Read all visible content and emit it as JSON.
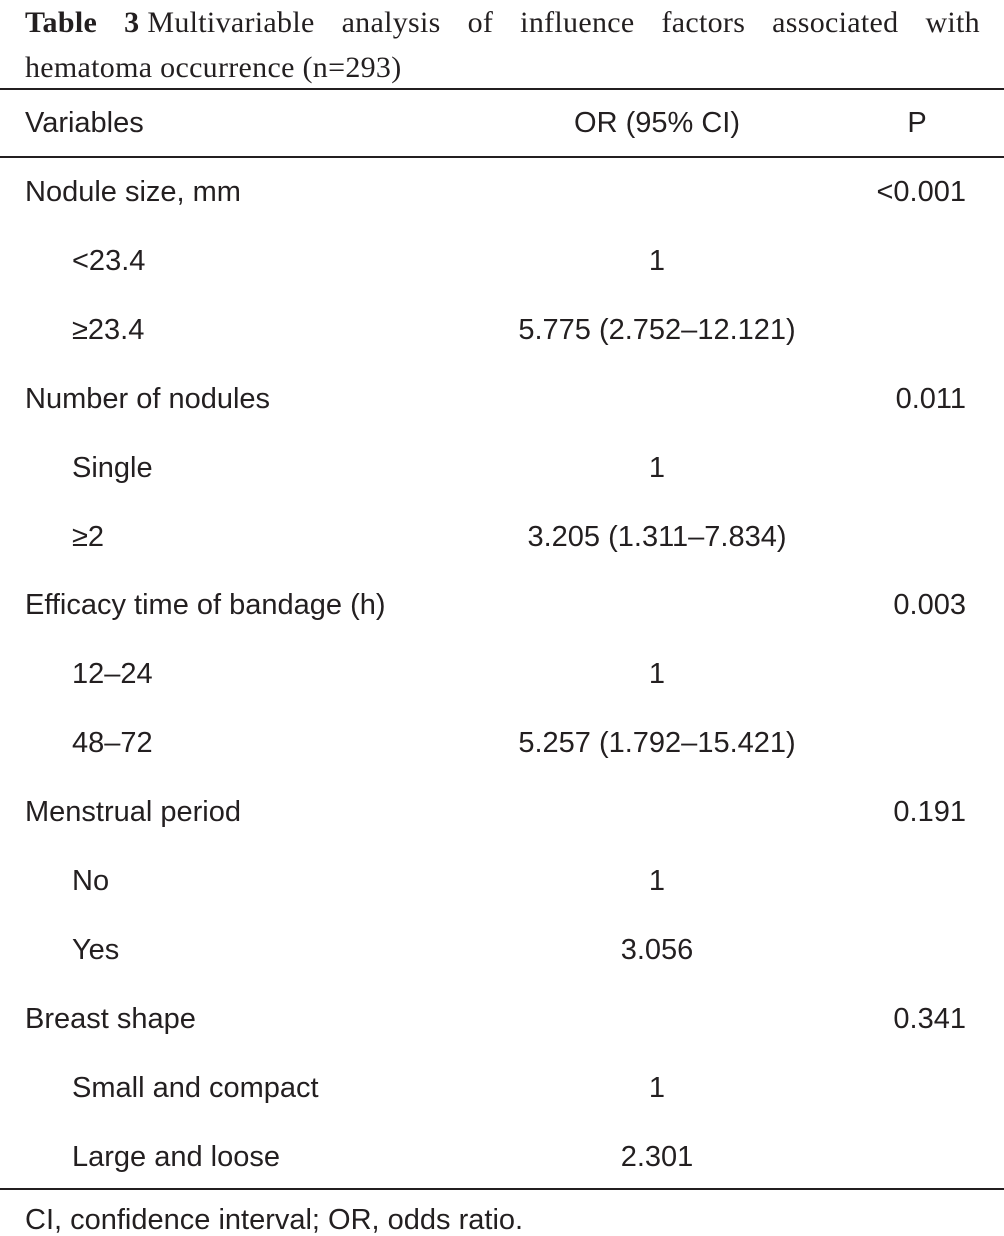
{
  "caption": {
    "label": "Table 3",
    "text": "Multivariable analysis of influence factors associated with hematoma occurrence (n=293)"
  },
  "table": {
    "header": [
      "Variables",
      "OR (95% CI)",
      "P"
    ],
    "groups": [
      {
        "name": "Nodule size, mm",
        "p": "<0.001",
        "levels": [
          {
            "label": "<23.4",
            "or": "1"
          },
          {
            "label": "≥23.4",
            "or": "5.775 (2.752–12.121)"
          }
        ]
      },
      {
        "name": "Number of nodules",
        "p": "0.011",
        "levels": [
          {
            "label": "Single",
            "or": "1"
          },
          {
            "label": "≥2",
            "or": "3.205 (1.311–7.834)"
          }
        ]
      },
      {
        "name": "Efficacy time of bandage (h)",
        "p": "0.003",
        "levels": [
          {
            "label": "12–24",
            "or": "1"
          },
          {
            "label": "48–72",
            "or": "5.257 (1.792–15.421)"
          }
        ]
      },
      {
        "name": "Menstrual period",
        "p": "0.191",
        "levels": [
          {
            "label": "No",
            "or": "1"
          },
          {
            "label": "Yes",
            "or": "3.056"
          }
        ]
      },
      {
        "name": "Breast shape",
        "p": "0.341",
        "levels": [
          {
            "label": "Small and compact",
            "or": "1"
          },
          {
            "label": "Large and loose",
            "or": "2.301"
          }
        ]
      }
    ]
  },
  "footnote": "CI, confidence interval; OR, odds ratio."
}
